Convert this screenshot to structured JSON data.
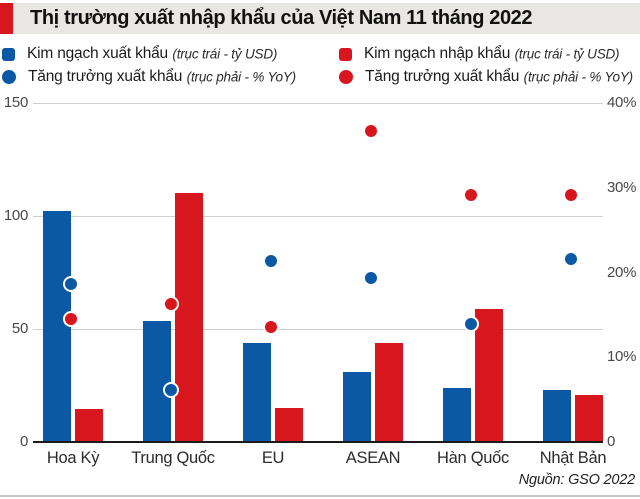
{
  "header": {
    "title": "Thị trường xuất nhập khẩu của Việt Nam 11 tháng 2022"
  },
  "legend": {
    "items": [
      {
        "marker": "square",
        "color_key": "blue",
        "label": "Kim ngạch xuất khẩu",
        "note": "(trục trái - tỷ USD)"
      },
      {
        "marker": "square",
        "color_key": "red",
        "label": "Kim ngạch nhập khẩu",
        "note": "(trục trái - tỷ USD)"
      },
      {
        "marker": "circle",
        "color_key": "blue",
        "label": "Tăng trưởng xuất khẩu",
        "note": "(trục phải - % YoY)"
      },
      {
        "marker": "circle",
        "color_key": "red",
        "label": "Tăng trưởng xuất khẩu",
        "note": "(trục phải - % YoY)"
      }
    ]
  },
  "colors": {
    "blue": "#0b58a5",
    "red": "#d8161e",
    "grid": "#cfcfce",
    "axis": "#1b1b1b",
    "header_bg": "#e9e7e4"
  },
  "chart_data": {
    "type": "combo-bar-scatter",
    "title": "Thị trường xuất nhập khẩu của Việt Nam 11 tháng 2022",
    "categories": [
      "Hoa Kỳ",
      "Trung Quốc",
      "EU",
      "ASEAN",
      "Hàn Quốc",
      "Nhật Bản"
    ],
    "series": [
      {
        "name": "Kim ngạch xuất khẩu",
        "type": "bar",
        "axis": "left",
        "color_key": "blue",
        "values": [
          102,
          53.5,
          44,
          31,
          24,
          23
        ]
      },
      {
        "name": "Kim ngạch nhập khẩu",
        "type": "bar",
        "axis": "left",
        "color_key": "red",
        "values": [
          14.5,
          110,
          15,
          44,
          59,
          21
        ]
      },
      {
        "name": "Tăng trưởng xuất khẩu",
        "type": "scatter",
        "axis": "right",
        "color_key": "blue",
        "values": [
          18.4,
          5.9,
          21.1,
          19.1,
          13.7,
          21.4
        ]
      },
      {
        "name": "Tăng trưởng xuất khẩu",
        "type": "scatter",
        "axis": "right",
        "color_key": "red",
        "values": [
          14.3,
          16,
          13.3,
          36.5,
          28.9,
          28.9
        ]
      }
    ],
    "left_axis": {
      "unit": "tỷ USD",
      "range": [
        0,
        150
      ],
      "tick_values": [
        0,
        50,
        100,
        150
      ],
      "tick_labels": [
        "0",
        "50",
        "100",
        "150"
      ]
    },
    "right_axis": {
      "unit": "% YoY",
      "range": [
        0,
        40
      ],
      "tick_values": [
        0,
        10,
        20,
        30,
        40
      ],
      "tick_labels": [
        "0",
        "10%",
        "20%",
        "30%",
        "40%"
      ]
    },
    "grid": "horizontal-at-left-ticks",
    "legend_position": "top"
  },
  "footer": {
    "source": "Nguồn: GSO 2022"
  }
}
